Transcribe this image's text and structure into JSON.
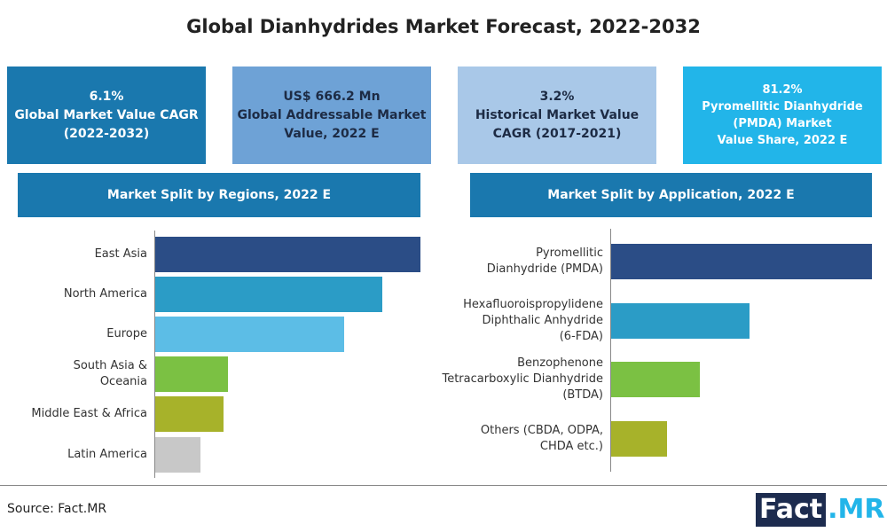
{
  "title": "Global Dianhydrides Market Forecast, 2022-2032",
  "cards": [
    {
      "text": "6.1%\nGlobal Market Value CAGR\n(2022-2032)"
    },
    {
      "text": "US$ 666.2 Mn\nGlobal Addressable Market\nValue, 2022 E"
    },
    {
      "text": "3.2%\nHistorical Market Value\nCAGR (2017-2021)"
    },
    {
      "text": "81.2%\nPyromellitic Dianhydride\n(PMDA) Market\nValue Share, 2022 E"
    }
  ],
  "chart_data": [
    {
      "type": "bar",
      "orientation": "horizontal",
      "title": "Market Split by Regions, 2022 E",
      "categories": [
        "East Asia",
        "North America",
        "Europe",
        "South Asia &\nOceania",
        "Middle East & Africa",
        "Latin America"
      ],
      "values": [
        30.5,
        26.1,
        21.8,
        8.4,
        7.9,
        5.3
      ],
      "colors": [
        "#2b4d86",
        "#2b9cc6",
        "#5cbde6",
        "#7bc143",
        "#a7b22a",
        "#c8c8c8"
      ]
    },
    {
      "type": "bar",
      "orientation": "horizontal",
      "title": "Market Split by Application, 2022 E",
      "categories": [
        "Pyromellitic\nDianhydride (PMDA)",
        "Hexafluoroispropylidene\nDiphthalic Anhydride\n(6-FDA)",
        "Benzophenone\nTetracarboxylic Dianhydride\n(BTDA)",
        "Others (CBDA, ODPA,\nCHDA etc.)"
      ],
      "values": [
        81.2,
        43.2,
        27.8,
        17.6
      ],
      "colors": [
        "#2b4d86",
        "#2b9cc6",
        "#7bc143",
        "#a7b22a"
      ]
    }
  ],
  "source": "Source: Fact.MR",
  "logo": {
    "main": "Fact",
    "accent": ".MR"
  }
}
